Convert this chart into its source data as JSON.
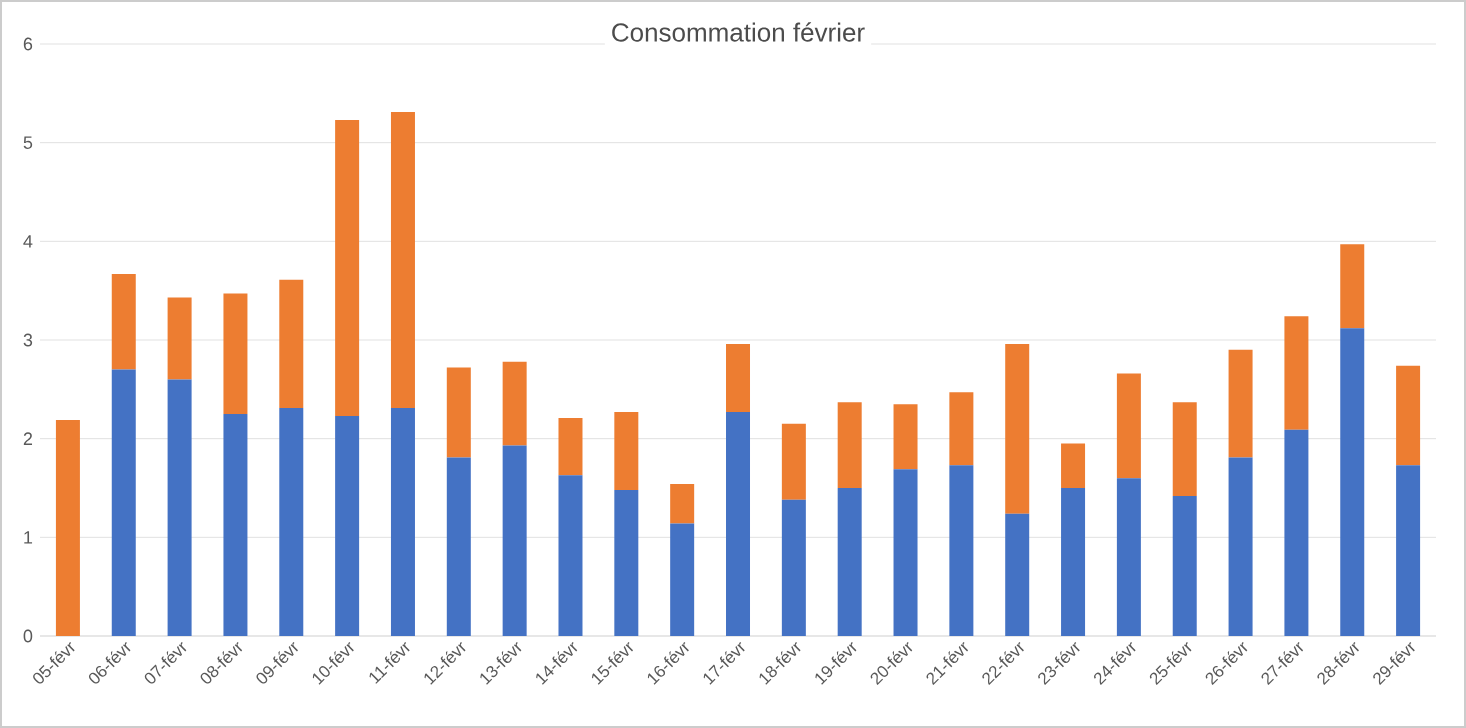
{
  "chart_data": {
    "type": "bar",
    "title": "Consommation février",
    "stacked": true,
    "grid": "y",
    "categories": [
      "05-févr",
      "06-févr",
      "07-févr",
      "08-févr",
      "09-févr",
      "10-févr",
      "11-févr",
      "12-févr",
      "13-févr",
      "14-févr",
      "15-févr",
      "16-févr",
      "17-févr",
      "18-févr",
      "19-févr",
      "20-févr",
      "21-févr",
      "22-févr",
      "23-févr",
      "24-févr",
      "25-févr",
      "26-févr",
      "27-févr",
      "28-févr",
      "29-févr"
    ],
    "series": [
      {
        "color": "#4472c4",
        "values": [
          0,
          2.7,
          2.6,
          2.25,
          2.31,
          2.23,
          2.31,
          1.81,
          1.93,
          1.63,
          1.48,
          1.14,
          2.27,
          1.38,
          1.5,
          1.69,
          1.73,
          1.24,
          1.5,
          1.6,
          1.42,
          1.81,
          2.09,
          3.12,
          1.73
        ]
      },
      {
        "color": "#ed7d31",
        "values": [
          2.19,
          0.97,
          0.83,
          1.22,
          1.3,
          3.0,
          3.0,
          0.91,
          0.85,
          0.58,
          0.79,
          0.4,
          0.69,
          0.77,
          0.87,
          0.66,
          0.74,
          1.72,
          0.45,
          1.06,
          0.95,
          1.09,
          1.15,
          0.85,
          1.01
        ]
      }
    ],
    "ylim": [
      0,
      6
    ],
    "yticks": [
      0,
      1,
      2,
      3,
      4,
      5,
      6
    ]
  }
}
